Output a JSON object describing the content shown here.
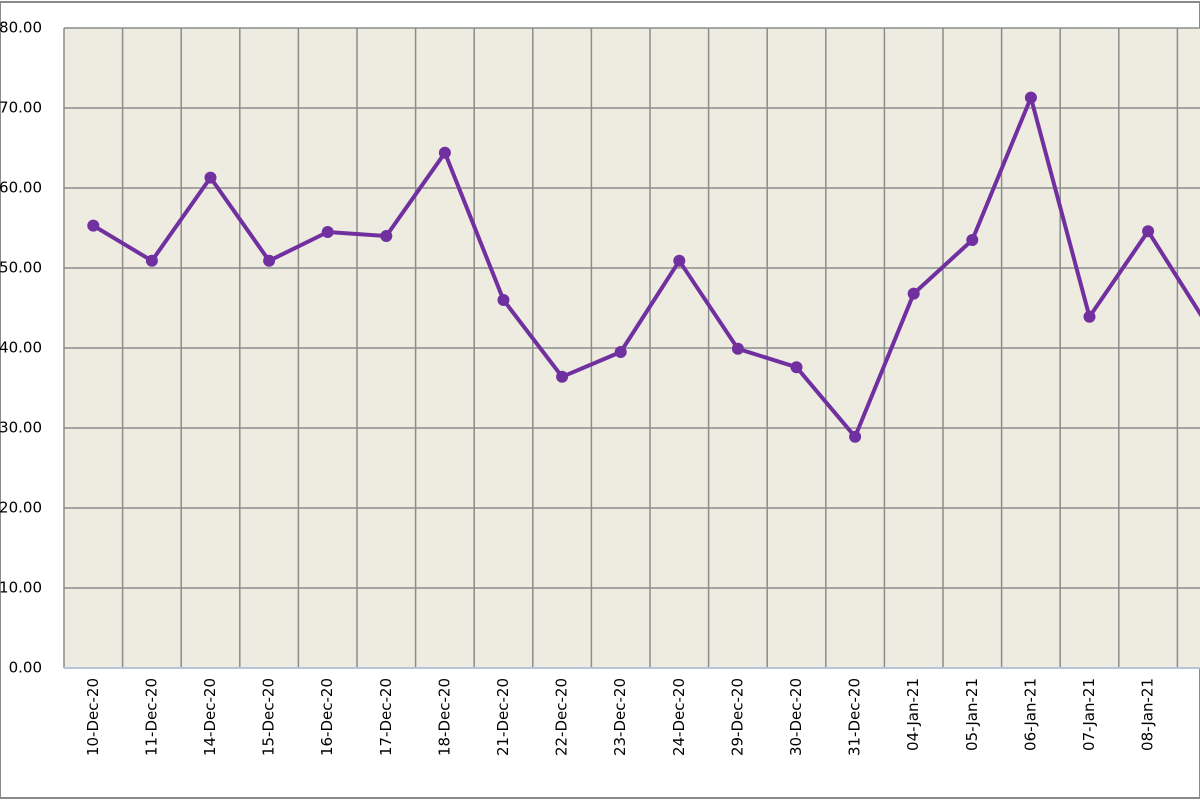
{
  "chart_data": {
    "type": "line",
    "categories": [
      "10-Dec-20",
      "11-Dec-20",
      "14-Dec-20",
      "15-Dec-20",
      "16-Dec-20",
      "17-Dec-20",
      "18-Dec-20",
      "21-Dec-20",
      "22-Dec-20",
      "23-Dec-20",
      "24-Dec-20",
      "29-Dec-20",
      "30-Dec-20",
      "31-Dec-20",
      "04-Jan-21",
      "05-Jan-21",
      "06-Jan-21",
      "07-Jan-21",
      "08-Jan-21",
      null
    ],
    "values": [
      55.3,
      50.9,
      61.3,
      50.9,
      54.5,
      54.0,
      64.4,
      46.0,
      36.4,
      39.5,
      50.9,
      39.9,
      37.6,
      28.9,
      46.8,
      53.5,
      71.3,
      43.9,
      54.6,
      43.0
    ],
    "color": "#7030a0",
    "ylim": [
      0,
      80
    ],
    "yticks": [
      {
        "value": 0,
        "label": "0.00"
      },
      {
        "value": 10,
        "label": "10.00"
      },
      {
        "value": 20,
        "label": "20.00"
      },
      {
        "value": 30,
        "label": "30.00"
      },
      {
        "value": 40,
        "label": "40.00"
      },
      {
        "value": 50,
        "label": "50.00"
      },
      {
        "value": 60,
        "label": "60.00"
      },
      {
        "value": 70,
        "label": "70.00"
      },
      {
        "value": 80,
        "label": "80.00"
      }
    ],
    "grid": true
  }
}
